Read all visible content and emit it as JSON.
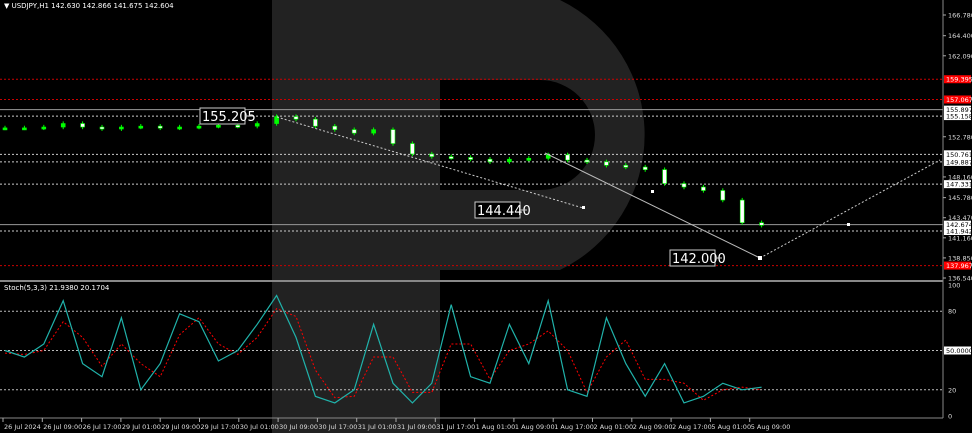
{
  "header": {
    "symbol": "USDJPY,H1",
    "ohlc": "142.630 142.866 141.675 142.604"
  },
  "indicator": {
    "title": "Stoch(5,3,3) 21.9380 20.1704"
  },
  "colors": {
    "background": "#000000",
    "bull": "#00ff00",
    "bear": "#ffffff",
    "stoch_main": "#20b2aa",
    "stoch_signal": "#ff0000",
    "level_red": "#ff0000",
    "watermark": "#222222"
  },
  "chart_data": [
    {
      "type": "candlestick",
      "symbol": "USDJPY",
      "timeframe": "H1",
      "ylim": [
        136.54,
        166.78
      ],
      "y_ticks": [
        "166.780",
        "164.400",
        "162.090",
        "152.780",
        "148.160",
        "145.780",
        "143.470",
        "141.160",
        "138.850",
        "136.540"
      ],
      "x_ticks": [
        "26 Jul 2024",
        "26 Jul 09:00",
        "26 Jul 17:00",
        "29 Jul 01:00",
        "29 Jul 09:00",
        "29 Jul 17:00",
        "30 Jul 01:00",
        "30 Jul 09:00",
        "30 Jul 17:00",
        "31 Jul 01:00",
        "31 Jul 09:00",
        "31 Jul 17:00",
        "1 Aug 01:00",
        "1 Aug 09:00",
        "1 Aug 17:00",
        "2 Aug 01:00",
        "2 Aug 09:00",
        "2 Aug 17:00",
        "5 Aug 01:00",
        "5 Aug 09:00"
      ],
      "closes": [
        153.8,
        153.8,
        153.9,
        154.3,
        153.9,
        153.7,
        153.9,
        154.0,
        153.8,
        153.9,
        154.0,
        154.1,
        154.0,
        154.3,
        155.1,
        154.8,
        154.0,
        153.6,
        153.2,
        153.6,
        152.0,
        150.8,
        150.5,
        150.4,
        150.2,
        149.9,
        150.2,
        150.3,
        150.7,
        150.1,
        149.9,
        149.5,
        149.3,
        149.0,
        147.4,
        147.0,
        146.6,
        145.5,
        142.9,
        142.6
      ],
      "levels": [
        {
          "price": 155.897,
          "label": "155.897",
          "style": "solid"
        },
        {
          "price": 155.158,
          "label": "155.158",
          "style": "dotted"
        },
        {
          "price": 150.761,
          "label": "150.761",
          "style": "dotted"
        },
        {
          "price": 149.887,
          "label": "149.887",
          "style": "dotted"
        },
        {
          "price": 147.331,
          "label": "147.331",
          "style": "dotted"
        },
        {
          "price": 142.674,
          "label": "142.674",
          "style": "solid"
        },
        {
          "price": 141.942,
          "label": "141.942",
          "style": "dotted"
        },
        {
          "price": 159.395,
          "label": "159.395",
          "style": "red"
        },
        {
          "price": 157.067,
          "label": "157.067",
          "style": "red"
        },
        {
          "price": 137.967,
          "label": "137.967",
          "style": "red"
        }
      ],
      "annotations": [
        "155.205",
        "144.440",
        "142.000"
      ]
    },
    {
      "type": "line",
      "title": "Stoch(5,3,3) 21.9380 20.1704",
      "ylim": [
        0,
        100
      ],
      "y_ticks": [
        "100",
        "80",
        "50.0000",
        "20",
        "0"
      ],
      "levels": [
        80,
        50,
        20
      ],
      "series": [
        {
          "values": [
            50,
            45,
            55,
            88,
            40,
            30,
            75,
            20,
            40,
            78,
            72,
            42,
            50,
            70,
            92,
            60,
            15,
            10,
            20,
            70,
            25,
            10,
            25,
            85,
            30,
            25,
            70,
            40,
            88,
            20,
            15,
            75,
            40,
            15,
            40,
            10,
            15,
            25,
            20,
            22
          ]
        },
        {
          "values": [
            48,
            47,
            50,
            72,
            60,
            38,
            55,
            40,
            30,
            62,
            75,
            55,
            47,
            60,
            82,
            76,
            35,
            14,
            15,
            45,
            45,
            18,
            18,
            55,
            55,
            28,
            50,
            55,
            65,
            50,
            18,
            45,
            58,
            28,
            28,
            25,
            12,
            20,
            22,
            20
          ]
        }
      ]
    }
  ]
}
